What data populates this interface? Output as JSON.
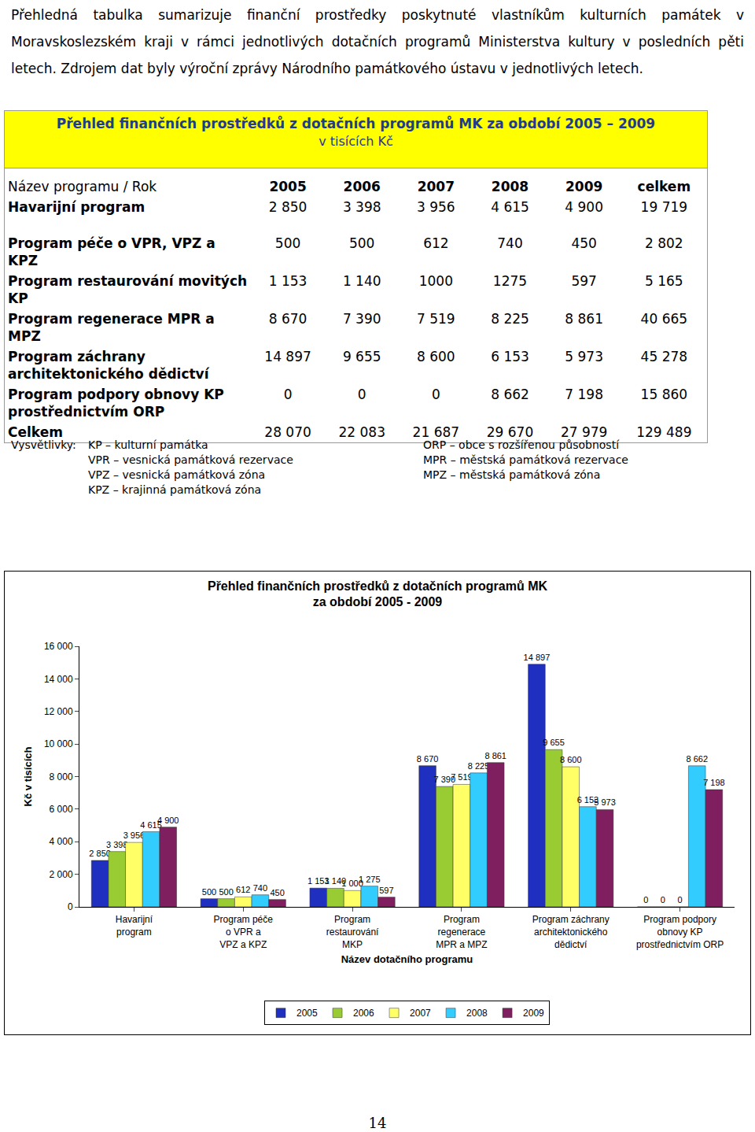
{
  "paragraph": "Přehledná tabulka sumarizuje finanční prostředky poskytnuté vlastníkům kulturních památek v Moravskoslezském kraji v rámci jednotlivých dotačních programů Ministerstva kultury v posledních pěti letech. Zdrojem dat byly výroční zprávy Národního památkového ústavu v jednotlivých letech.",
  "table": {
    "title": "Přehled finančních prostředků z dotačních programů MK za období 2005 – 2009",
    "subtitle": "v tisících Kč",
    "header": [
      "Název programu / Rok",
      "2005",
      "2006",
      "2007",
      "2008",
      "2009",
      "celkem"
    ],
    "rows": [
      [
        "Havarijní program",
        "2 850",
        "3 398",
        "3 956",
        "4 615",
        "4 900",
        "19 719"
      ],
      [
        "Program péče o VPR, VPZ a KPZ",
        "500",
        "500",
        "612",
        "740",
        "450",
        "2 802"
      ],
      [
        "Program restaurování movitých KP",
        "1 153",
        "1 140",
        "1000",
        "1275",
        "597",
        "5 165"
      ],
      [
        "Program regenerace MPR a MPZ",
        "8 670",
        "7 390",
        "7 519",
        "8 225",
        "8 861",
        "40 665"
      ],
      [
        "Program záchrany architektonického dědictví",
        "14 897",
        "9 655",
        "8 600",
        "6 153",
        "5 973",
        "45 278"
      ],
      [
        "Program podpory obnovy KP prostřednictvím ORP",
        "0",
        "0",
        "0",
        "8 662",
        "7 198",
        "15 860"
      ],
      [
        "Celkem",
        "28 070",
        "22 083",
        "21 687",
        "29 670",
        "27 979",
        "129 489"
      ]
    ]
  },
  "notes": {
    "label": "Vysvětlivky:",
    "left": [
      "KP – kulturní památka",
      "VPR – vesnická památková rezervace",
      "VPZ – vesnická památková zóna",
      "KPZ – krajinná památková zóna"
    ],
    "right": [
      "ORP – obce s rozšířenou působností",
      "MPR – městská památková rezervace",
      "MPZ – městská památková zóna"
    ]
  },
  "chart_data": {
    "type": "bar",
    "title": "Přehled finančních prostředků z dotačních programů MK\nza období 2005 - 2009",
    "x_label": "Název dotačního programu",
    "y_label": "Kč v tisících",
    "categories": [
      "Havarijní\nprogram",
      "Program péče\no VPR a\nVPZ a KPZ",
      "Program\nrestaurování\nMKP",
      "Program\nregenerace\nMPR a MPZ",
      "Program záchrany\narchitektonického\ndědictví",
      "Program podpory\nobnovy KP\nprostřednictvím ORP"
    ],
    "series": [
      {
        "name": "2005",
        "color": "#1f2fbf",
        "values": [
          2850,
          500,
          1153,
          8670,
          14897,
          0
        ],
        "value_labels": [
          "2 850",
          "500",
          "1 153",
          "8 670",
          "14 897",
          "0"
        ]
      },
      {
        "name": "2006",
        "color": "#99cc33",
        "values": [
          3398,
          500,
          1140,
          7390,
          9655,
          0
        ],
        "value_labels": [
          "3 398",
          "500",
          "1 140",
          "7 390",
          "9 655",
          "0"
        ]
      },
      {
        "name": "2007",
        "color": "#ffff66",
        "values": [
          3956,
          612,
          1000,
          7519,
          8600,
          0
        ],
        "value_labels": [
          "3 956",
          "612",
          "1 000",
          "7 519",
          "8 600",
          "0"
        ]
      },
      {
        "name": "2008",
        "color": "#33ccff",
        "values": [
          4615,
          740,
          1275,
          8225,
          6153,
          8662
        ],
        "value_labels": [
          "4 615",
          "740",
          "1 275",
          "8 225",
          "6 153",
          "8 662"
        ]
      },
      {
        "name": "2009",
        "color": "#7f1f5f",
        "values": [
          4900,
          450,
          597,
          8861,
          5973,
          7198
        ],
        "value_labels": [
          "4 900",
          "450",
          "597",
          "8 861",
          "5 973",
          "7 198"
        ]
      }
    ],
    "ylim": [
      0,
      16000
    ],
    "yticks": [
      0,
      {
        "value": 2000,
        "label": "2 000"
      },
      {
        "value": 4000,
        "label": "4 000"
      },
      {
        "value": 6000,
        "label": "6 000"
      },
      {
        "value": 8000,
        "label": "8 000"
      },
      {
        "value": 10000,
        "label": "10 000"
      },
      {
        "value": 12000,
        "label": "12 000"
      },
      {
        "value": 14000,
        "label": "14 000"
      },
      {
        "value": 16000,
        "label": "16 000"
      }
    ],
    "grid": false,
    "legend": "bottom",
    "data_labels": true
  },
  "page_number": "14"
}
